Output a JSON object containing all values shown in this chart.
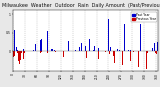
{
  "title": "Milwaukee  Weather  Outdoor  Rain",
  "subtitle": "Daily Amount  (Past/Previous Year)",
  "background_color": "#e8e8e8",
  "plot_bg_color": "#ffffff",
  "legend_blue_label": "Past Year",
  "legend_red_label": "Previous Year",
  "num_bars": 365,
  "blue_color": "#0000cc",
  "red_color": "#cc0000",
  "grid_color": "#aaaaaa",
  "title_fontsize": 3.5,
  "tick_fontsize": 2.2,
  "ylim": [
    -0.55,
    1.1
  ],
  "seed": 99
}
